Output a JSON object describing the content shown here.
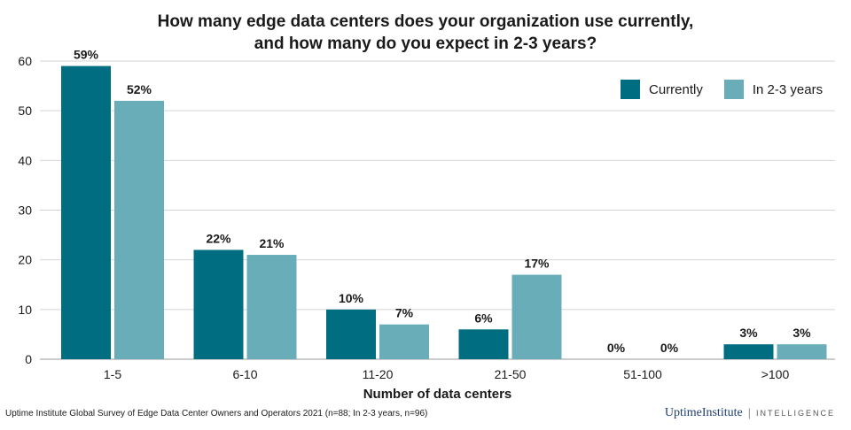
{
  "chart_data": {
    "type": "bar",
    "title_line1": "How many edge data centers does your organization use currently,",
    "title_line2": "and how many do you expect in 2-3 years?",
    "xlabel": "Number of data centers",
    "ylabel": "",
    "categories": [
      "1-5",
      "6-10",
      "11-20",
      "21-50",
      "51-100",
      ">100"
    ],
    "series": [
      {
        "name": "Currently",
        "values": [
          59,
          22,
          10,
          6,
          0,
          3
        ],
        "labels": [
          "59%",
          "22%",
          "10%",
          "6%",
          "0%",
          "3%"
        ],
        "color": "#006e80"
      },
      {
        "name": "In 2-3 years",
        "values": [
          52,
          21,
          7,
          17,
          0,
          3
        ],
        "labels": [
          "52%",
          "21%",
          "7%",
          "17%",
          "0%",
          "3%"
        ],
        "color": "#69adb8"
      }
    ],
    "ylim": [
      0,
      60
    ],
    "yticks": [
      0,
      10,
      20,
      30,
      40,
      50,
      60
    ],
    "grid": true,
    "legend_position": "top-right"
  },
  "footer": {
    "source": "Uptime Institute Global Survey of Edge Data Center Owners and Operators 2021 (n=88; In 2-3 years, n=96)",
    "logo_brand": "UptimeInstitute",
    "logo_suffix": "INTELLIGENCE"
  }
}
